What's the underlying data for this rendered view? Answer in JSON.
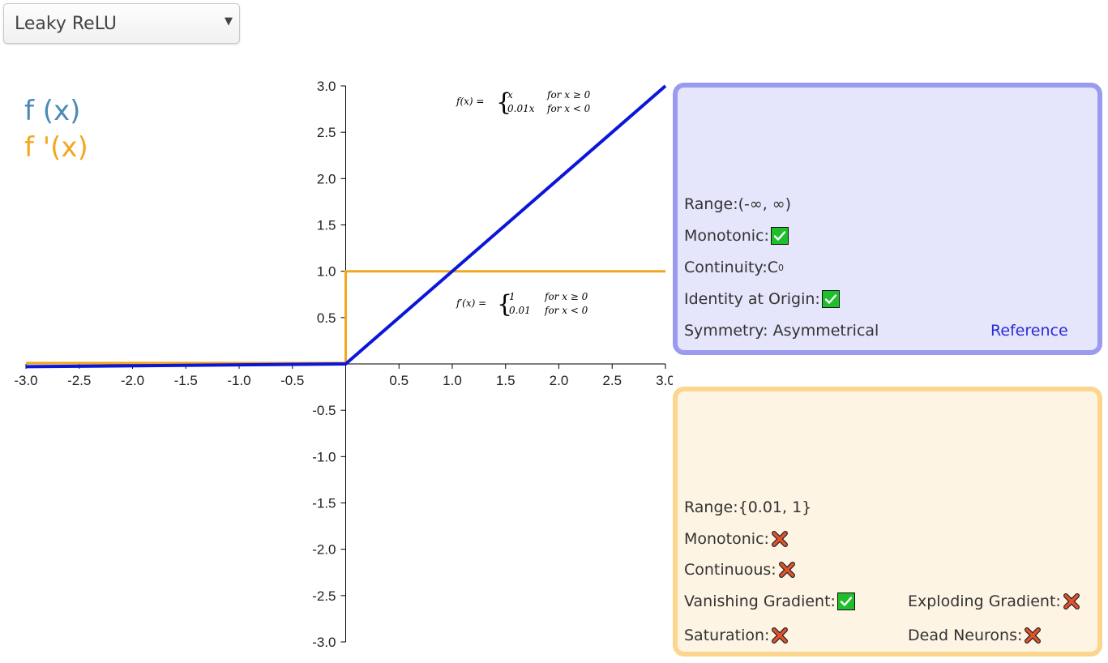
{
  "dropdown": {
    "selected": "Leaky ReLU"
  },
  "legend": {
    "f": "f (x)",
    "fprime": "f '(x)"
  },
  "colors": {
    "f_line": "#0b16d9",
    "fprime_line": "#f2a71e",
    "f_legend": "#4a8ab8",
    "fprime_legend": "#f2a71e"
  },
  "formulas": {
    "f": {
      "lhs": "f(x) =",
      "case1": "x",
      "cond1": "for x ≥ 0",
      "case2": "0.01x",
      "cond2": "for x < 0"
    },
    "fprime": {
      "lhs": "f′(x) =",
      "case1": "1",
      "cond1": "for x ≥ 0",
      "case2": "0.01",
      "cond2": "for x < 0"
    }
  },
  "function_panel": {
    "range": "Range:(-∞, ∞)",
    "monotonic": "Monotonic:",
    "continuity": "Continuity:C",
    "continuity_sup": "0",
    "identity": "Identity at Origin:",
    "symmetry": "Symmetry: Asymmetrical",
    "reference": "Reference",
    "monotonic_value": "check",
    "identity_value": "check"
  },
  "derivative_panel": {
    "range": "Range:{0.01, 1}",
    "monotonic": "Monotonic:",
    "continuous": "Continuous:",
    "vanishing": "Vanishing Gradient:",
    "exploding": "Exploding Gradient:",
    "saturation": "Saturation:",
    "dead": "Dead Neurons:",
    "monotonic_value": "cross",
    "continuous_value": "cross",
    "vanishing_value": "check",
    "exploding_value": "cross",
    "saturation_value": "cross",
    "dead_value": "cross"
  },
  "chart_data": {
    "type": "line",
    "xlim": [
      -3.0,
      3.0
    ],
    "ylim": [
      -3.0,
      3.0
    ],
    "x_ticks": [
      "-3.0",
      "-2.5",
      "-2.0",
      "-1.5",
      "-1.0",
      "-0.5",
      "0.5",
      "1.0",
      "1.5",
      "2.0",
      "2.5",
      "3.0"
    ],
    "y_ticks": [
      "3.0",
      "2.5",
      "2.0",
      "1.5",
      "1.0",
      "0.5",
      "-0.5",
      "-1.0",
      "-1.5",
      "-2.0",
      "-2.5",
      "-3.0"
    ],
    "series": [
      {
        "name": "f (x)",
        "color": "#0b16d9",
        "points": [
          [
            -3.0,
            -0.03
          ],
          [
            0,
            0
          ],
          [
            3.0,
            3.0
          ]
        ]
      },
      {
        "name": "f '(x)",
        "color": "#f2a71e",
        "points": [
          [
            -3.0,
            0.01
          ],
          [
            0,
            0.01
          ],
          [
            0,
            1.0
          ],
          [
            3.0,
            1.0
          ]
        ]
      }
    ]
  }
}
